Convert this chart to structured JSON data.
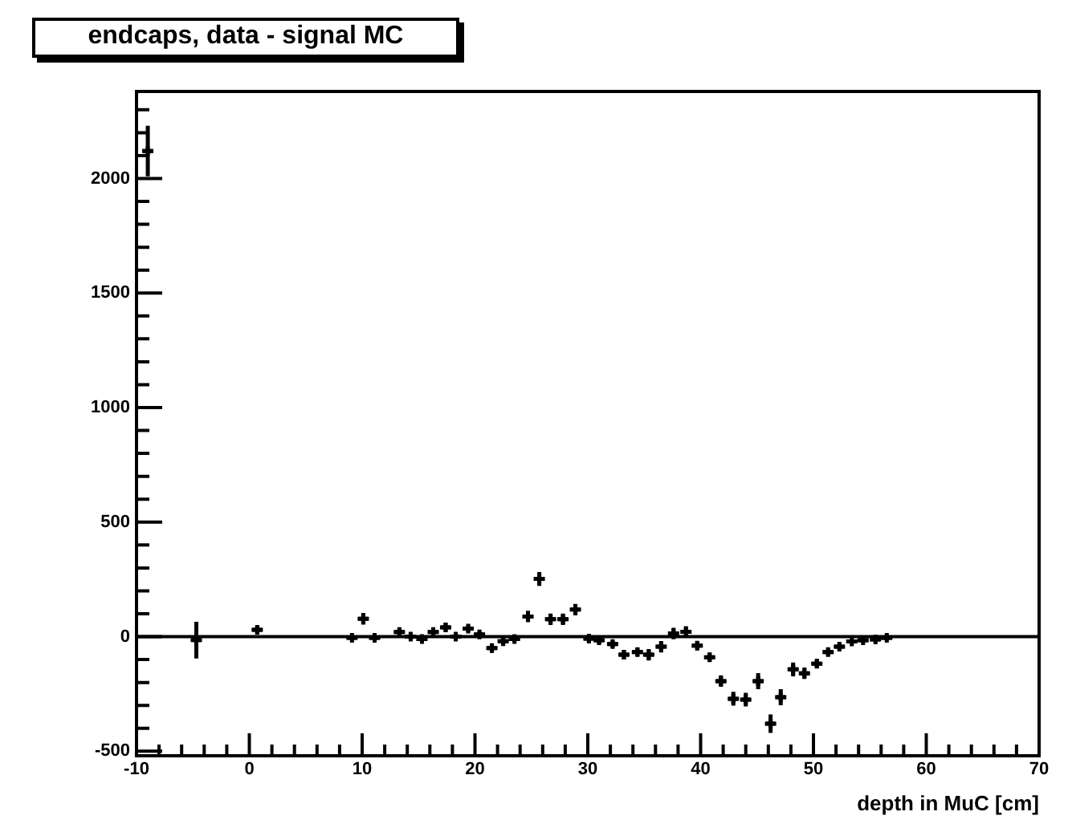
{
  "chart_data": {
    "type": "scatter",
    "title": "endcaps, data - signal MC",
    "xlabel": "depth in MuC [cm]",
    "marker": "cross",
    "color": "#000000",
    "x": [
      -9,
      -4.7,
      0.7,
      9.1,
      10.1,
      11.1,
      13.3,
      14.3,
      15.3,
      16.3,
      17.4,
      18.3,
      19.4,
      20.4,
      21.5,
      22.5,
      23.5,
      24.7,
      25.7,
      26.7,
      27.8,
      28.9,
      30.1,
      31,
      32.2,
      33.2,
      34.4,
      35.4,
      36.5,
      37.6,
      38.7,
      39.7,
      40.8,
      41.8,
      42.9,
      44,
      45.1,
      46.2,
      47.1,
      48.2,
      49.2,
      50.3,
      51.3,
      52.3,
      53.4,
      54.4,
      55.5,
      56.5
    ],
    "values": [
      2120,
      -15,
      30,
      -5,
      78,
      -5,
      20,
      0,
      -10,
      20,
      40,
      0,
      35,
      10,
      -50,
      -20,
      -10,
      88,
      252,
      76,
      76,
      118,
      -9,
      -16,
      -32,
      -79,
      -67,
      -79,
      -44,
      14,
      21,
      -39,
      -90,
      -194,
      -271,
      -275,
      -194,
      -380,
      -264,
      -143,
      -160,
      -118,
      -67,
      -44,
      -21,
      -16,
      -12,
      -5
    ],
    "errors": [
      110,
      80,
      20,
      10,
      25,
      10,
      15,
      15,
      15,
      15,
      20,
      15,
      15,
      15,
      20,
      15,
      15,
      25,
      30,
      25,
      25,
      25,
      15,
      15,
      15,
      20,
      20,
      25,
      25,
      25,
      25,
      20,
      20,
      25,
      30,
      30,
      35,
      40,
      35,
      30,
      25,
      20,
      15,
      15,
      10,
      10,
      10,
      10
    ],
    "xerrors": [
      0.5,
      0.5,
      0.5,
      0.5,
      0.5,
      0.5,
      0.5,
      0.5,
      0.5,
      0.5,
      0.5,
      0.5,
      0.5,
      0.5,
      0.5,
      0.5,
      0.5,
      0.5,
      0.5,
      0.5,
      0.5,
      0.5,
      0.5,
      0.5,
      0.5,
      0.5,
      0.5,
      0.5,
      0.5,
      0.5,
      0.5,
      0.5,
      0.5,
      0.5,
      0.5,
      0.5,
      0.5,
      0.5,
      0.5,
      0.5,
      0.5,
      0.5,
      0.5,
      0.5,
      0.5,
      0.5,
      0.5,
      0.5
    ],
    "xlim": [
      -10,
      70
    ],
    "ylim": [
      -520,
      2380
    ],
    "xticks": [
      -10,
      {
        "value": -8,
        "label": null
      },
      {
        "value": -6,
        "label": null
      },
      {
        "value": -4,
        "label": null
      },
      {
        "value": -2,
        "label": null
      },
      0,
      {
        "value": 2,
        "label": null
      },
      {
        "value": 4,
        "label": null
      },
      {
        "value": 6,
        "label": null
      },
      {
        "value": 8,
        "label": null
      },
      10,
      {
        "value": 12,
        "label": null
      },
      {
        "value": 14,
        "label": null
      },
      {
        "value": 16,
        "label": null
      },
      {
        "value": 18,
        "label": null
      },
      20,
      {
        "value": 22,
        "label": null
      },
      {
        "value": 24,
        "label": null
      },
      {
        "value": 26,
        "label": null
      },
      {
        "value": 28,
        "label": null
      },
      30,
      {
        "value": 32,
        "label": null
      },
      {
        "value": 34,
        "label": null
      },
      {
        "value": 36,
        "label": null
      },
      {
        "value": 38,
        "label": null
      },
      40,
      {
        "value": 42,
        "label": null
      },
      {
        "value": 44,
        "label": null
      },
      {
        "value": 46,
        "label": null
      },
      {
        "value": 48,
        "label": null
      },
      50,
      {
        "value": 52,
        "label": null
      },
      {
        "value": 54,
        "label": null
      },
      {
        "value": 56,
        "label": null
      },
      {
        "value": 58,
        "label": null
      },
      60,
      {
        "value": 62,
        "label": null
      },
      {
        "value": 64,
        "label": null
      },
      {
        "value": 66,
        "label": null
      },
      {
        "value": 68,
        "label": null
      },
      70
    ],
    "yticks": [
      -500,
      {
        "value": -400,
        "label": null
      },
      {
        "value": -300,
        "label": null
      },
      {
        "value": -200,
        "label": null
      },
      {
        "value": -100,
        "label": null
      },
      0,
      {
        "value": 100,
        "label": null
      },
      {
        "value": 200,
        "label": null
      },
      {
        "value": 300,
        "label": null
      },
      {
        "value": 400,
        "label": null
      },
      500,
      {
        "value": 600,
        "label": null
      },
      {
        "value": 700,
        "label": null
      },
      {
        "value": 800,
        "label": null
      },
      {
        "value": 900,
        "label": null
      },
      1000,
      {
        "value": 1100,
        "label": null
      },
      {
        "value": 1200,
        "label": null
      },
      {
        "value": 1300,
        "label": null
      },
      {
        "value": 1400,
        "label": null
      },
      1500,
      {
        "value": 1600,
        "label": null
      },
      {
        "value": 1700,
        "label": null
      },
      {
        "value": 1800,
        "label": null
      },
      {
        "value": 1900,
        "label": null
      },
      2000,
      {
        "value": 2100,
        "label": null
      },
      {
        "value": 2200,
        "label": null
      },
      {
        "value": 2300,
        "label": null
      }
    ],
    "ref_lines": [
      {
        "axis": "y",
        "value": 0
      }
    ]
  }
}
